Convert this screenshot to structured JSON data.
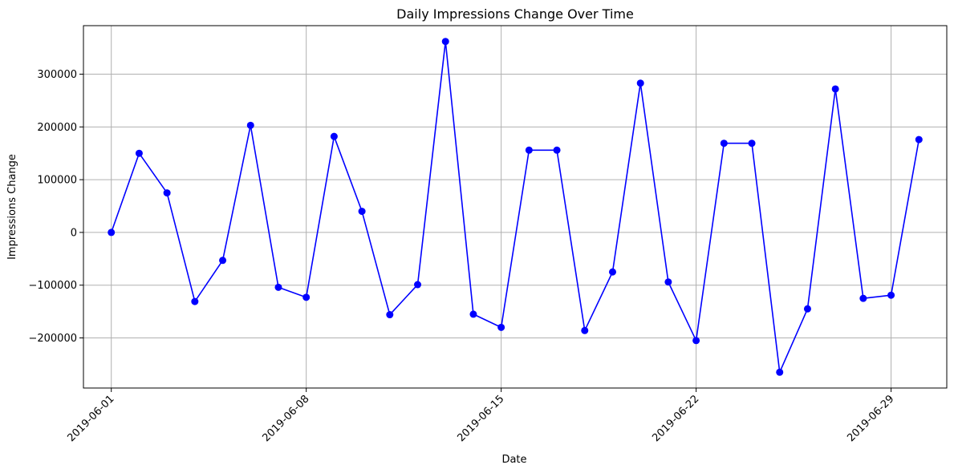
{
  "chart_data": {
    "type": "line",
    "title": "Daily Impressions Change Over Time",
    "xlabel": "Date",
    "ylabel": "Impressions Change",
    "x_ticks": [
      "2019-06-01",
      "2019-06-08",
      "2019-06-15",
      "2019-06-22",
      "2019-06-29"
    ],
    "y_ticks": [
      -200000,
      -100000,
      0,
      100000,
      200000,
      300000
    ],
    "y_tick_labels": [
      "−200000",
      "−100000",
      "0",
      "100000",
      "200000",
      "300000"
    ],
    "xlim": [
      "2019-05-31",
      "2019-07-01"
    ],
    "ylim": [
      -295000,
      392000
    ],
    "grid": true,
    "line_color": "#0000ff",
    "series": [
      {
        "x": [
          "2019-06-01",
          "2019-06-02",
          "2019-06-03",
          "2019-06-04",
          "2019-06-05",
          "2019-06-06",
          "2019-06-07",
          "2019-06-08",
          "2019-06-09",
          "2019-06-10",
          "2019-06-11",
          "2019-06-12",
          "2019-06-13",
          "2019-06-14",
          "2019-06-15",
          "2019-06-16",
          "2019-06-17",
          "2019-06-18",
          "2019-06-19",
          "2019-06-20",
          "2019-06-21",
          "2019-06-22",
          "2019-06-23",
          "2019-06-24",
          "2019-06-25",
          "2019-06-26",
          "2019-06-27",
          "2019-06-28",
          "2019-06-29",
          "2019-06-30"
        ],
        "values": [
          0,
          150000,
          75000,
          -131000,
          -53000,
          203000,
          -104000,
          -123000,
          182000,
          40000,
          -156000,
          -99000,
          362000,
          -155000,
          -180000,
          156000,
          156000,
          -186000,
          -75000,
          283000,
          -94000,
          -205000,
          169000,
          169000,
          -265000,
          -145000,
          272000,
          -125000,
          -119000,
          176000
        ]
      }
    ]
  }
}
